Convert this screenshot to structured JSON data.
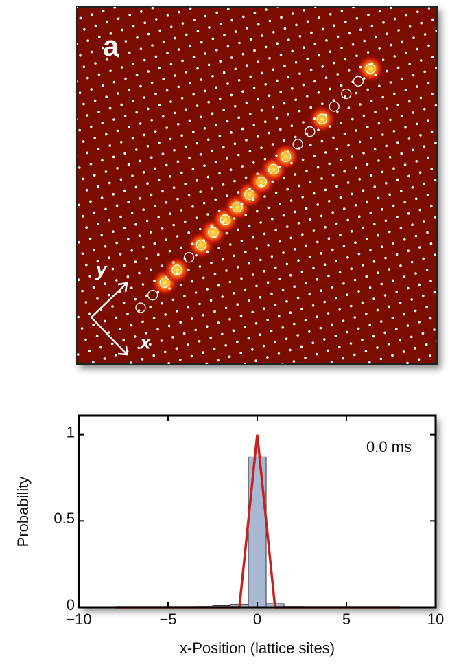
{
  "panel_label": "a",
  "image_axes": {
    "y": "y",
    "x": "x"
  },
  "chart_data": {
    "type": "histogram",
    "ylabel": "Probability",
    "xlabel": "x-Position (lattice sites)",
    "annotation": "0.0 ms",
    "bins": [
      -3.5,
      -2.5,
      -1.5,
      -0.5,
      0.5,
      1.5,
      2.5,
      3.5
    ],
    "values": [
      0.005,
      0.01,
      0.015,
      0.87,
      0.02,
      0.005,
      0
    ],
    "color": "#a9b9d3",
    "series": [
      {
        "type": "line",
        "color": "#c8201c",
        "x": [
          -8,
          -1,
          0,
          1,
          8
        ],
        "values": [
          0,
          0,
          1,
          0,
          0
        ]
      }
    ],
    "xlim": [
      -10,
      10
    ],
    "ylim": [
      0,
      1.11
    ],
    "xticks": [
      {
        "value": -10,
        "label": "−10"
      },
      {
        "value": -5,
        "label": "−5"
      },
      0,
      5,
      10
    ],
    "yticks": [
      0,
      0.5,
      1
    ]
  }
}
